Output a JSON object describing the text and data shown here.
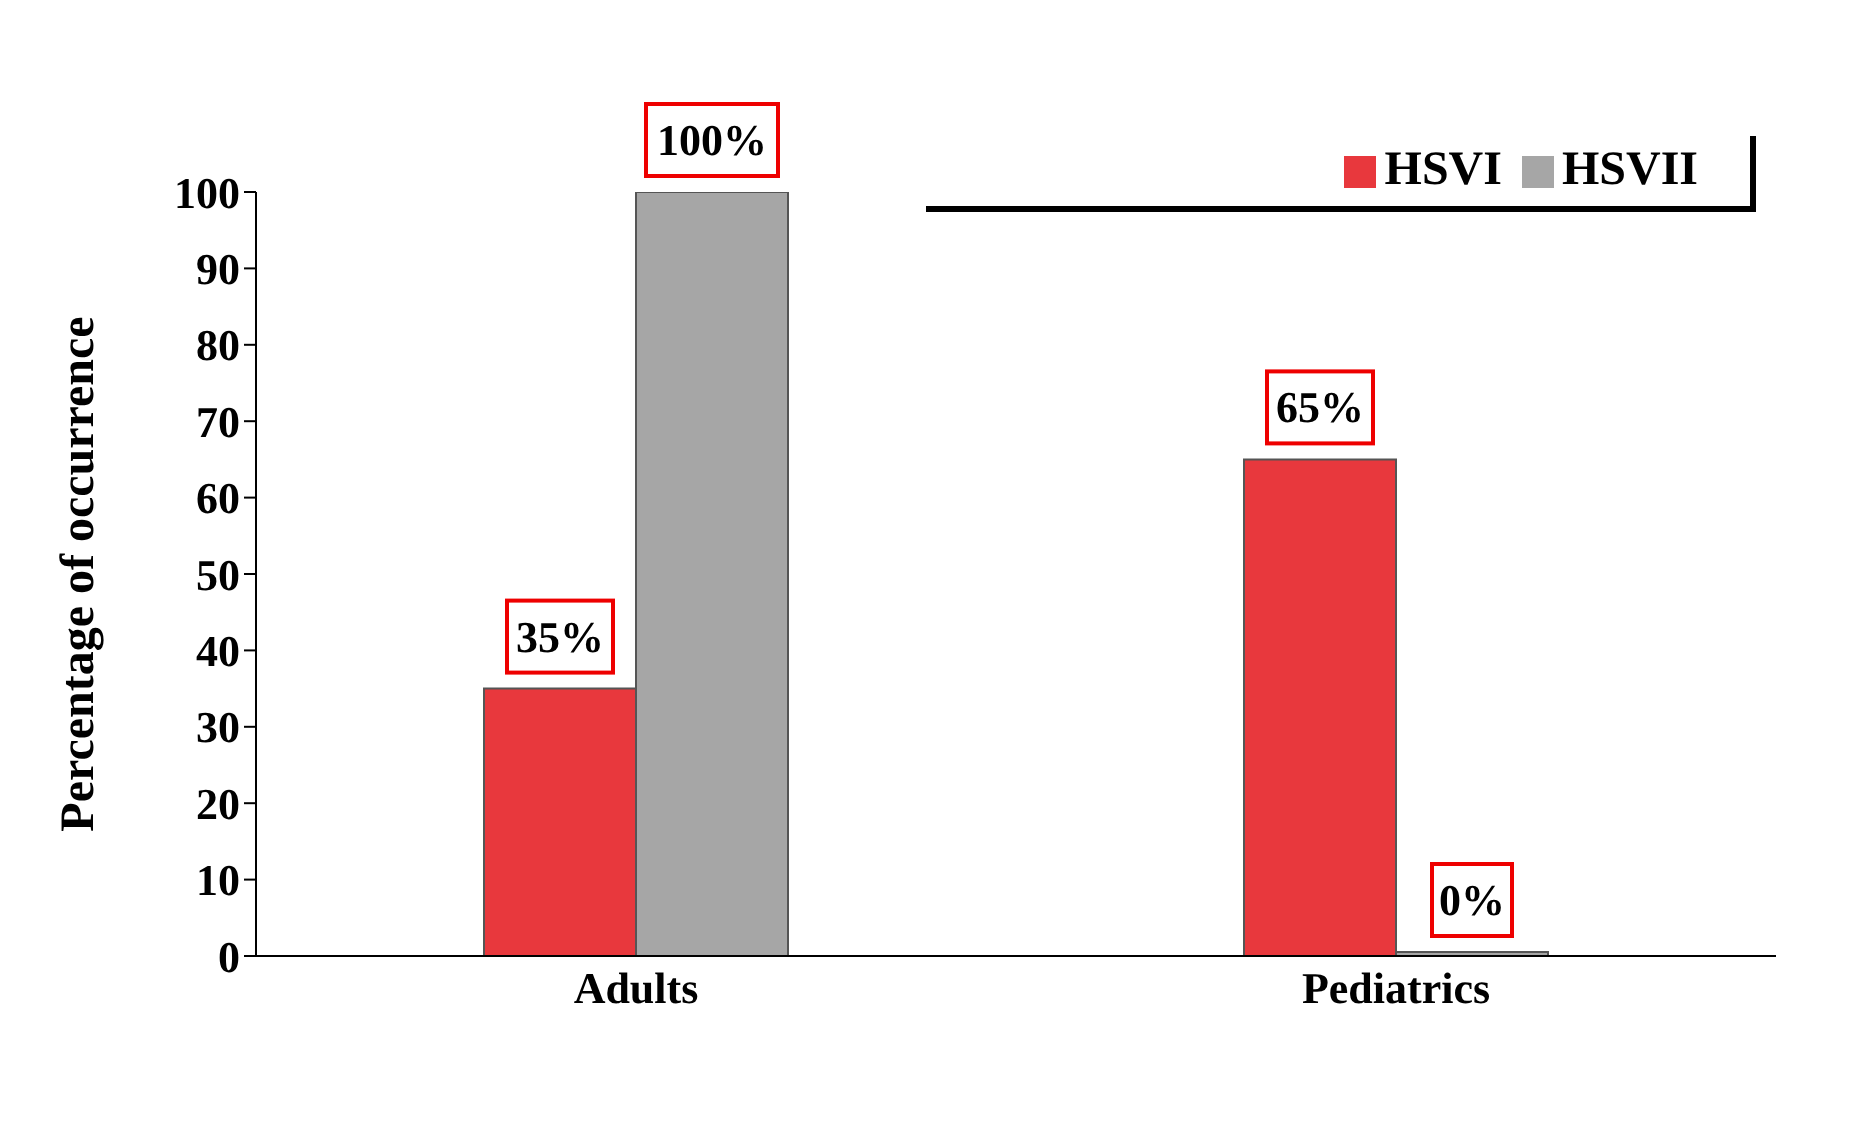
{
  "chart_data": {
    "type": "bar",
    "ylabel": "Percentage of occurrence",
    "categories": [
      "Adults",
      "Pediatrics"
    ],
    "series": [
      {
        "name": "HSVI",
        "color": "#e8383d",
        "values": [
          35,
          65
        ],
        "value_labels": [
          "35%",
          "65%"
        ]
      },
      {
        "name": "HSVII",
        "color": "#a6a6a6",
        "values": [
          100,
          0
        ],
        "value_labels": [
          "100%",
          "0%"
        ]
      }
    ],
    "ylim": [
      0,
      100
    ],
    "yticks": [
      0,
      10,
      20,
      30,
      40,
      50,
      60,
      70,
      80,
      90,
      100
    ],
    "legend": "top right"
  }
}
